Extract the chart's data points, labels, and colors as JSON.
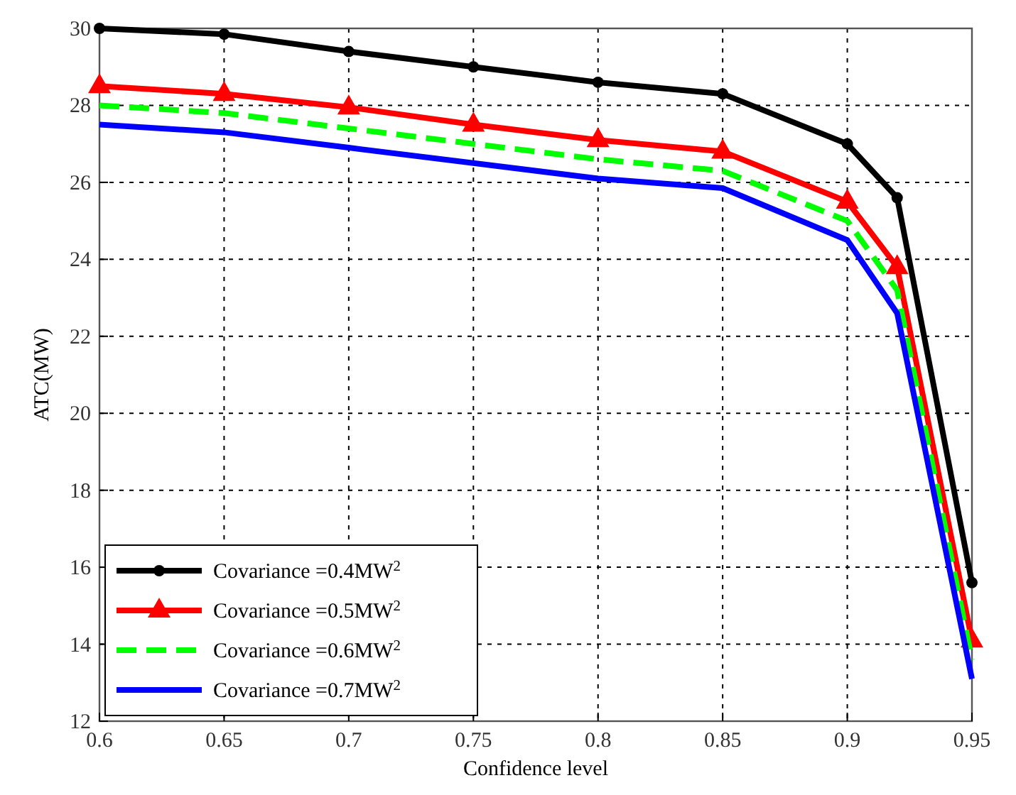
{
  "chart_data": {
    "type": "line",
    "xlabel": "Confidence level",
    "ylabel": "ATC(MW)",
    "x": [
      0.6,
      0.65,
      0.7,
      0.75,
      0.8,
      0.85,
      0.9,
      0.92,
      0.95
    ],
    "xlim": [
      0.6,
      0.95
    ],
    "xticks": [
      0.6,
      0.65,
      0.7,
      0.75,
      0.8,
      0.85,
      0.9,
      0.95
    ],
    "ylim": [
      12,
      30
    ],
    "yticks": [
      12,
      14,
      16,
      18,
      20,
      22,
      24,
      26,
      28,
      30
    ],
    "grid": true,
    "legend": "bottom left",
    "line_style": "solid",
    "series": [
      {
        "name": "Covariance =0.4MW$^{2}$",
        "color": "#000000",
        "marker": "circle",
        "values": [
          30,
          29.85,
          29.4,
          29.0,
          28.6,
          28.3,
          27.0,
          25.6,
          15.6
        ]
      },
      {
        "name": "Covariance =0.5MW$^{2}$",
        "color": "#ff0000",
        "marker": "triangle",
        "values": [
          28.5,
          28.3,
          27.95,
          27.5,
          27.1,
          26.8,
          25.5,
          23.8,
          14.1
        ]
      },
      {
        "name": "Covariance =0.6MW$^{2}$",
        "color": "#00ff00",
        "marker": "none",
        "line_style": "dashed",
        "values": [
          28.0,
          27.8,
          27.4,
          27.0,
          26.6,
          26.3,
          25.0,
          23.2,
          13.6
        ]
      },
      {
        "name": "Covariance =0.7MW$^{2}$",
        "color": "#0000ff",
        "marker": "none",
        "values": [
          27.5,
          27.3,
          26.9,
          26.5,
          26.1,
          25.85,
          24.5,
          22.6,
          13.1
        ]
      }
    ]
  }
}
